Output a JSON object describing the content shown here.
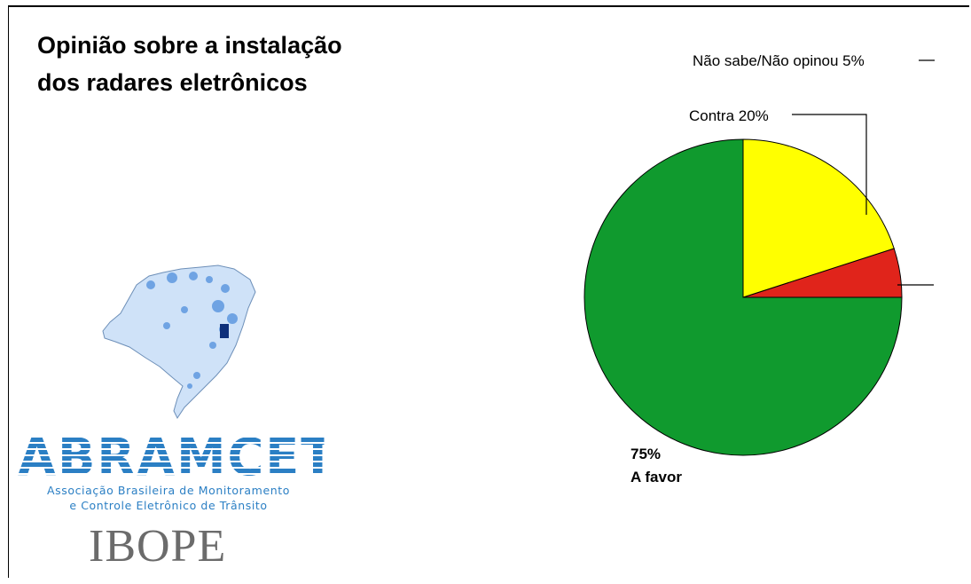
{
  "title": "Opinião sobre a instalação\ndos radares eletrônicos",
  "chart_data": {
    "type": "pie",
    "title": "Opinião sobre a instalação dos radares eletrônicos",
    "slices": [
      {
        "category": "A favor",
        "value": 75,
        "value_label": "75%",
        "color": "#109a2e"
      },
      {
        "category": "Contra",
        "value": 20,
        "value_label": "20%",
        "color": "#ffff00"
      },
      {
        "category": "Não sabe/Não opinou",
        "value": 5,
        "value_label": "5%",
        "color": "#e0241b"
      }
    ],
    "labels": {
      "dont_know": "Não sabe/Não opinou 5%",
      "against": "Contra 20%",
      "favor_pct": "75%",
      "favor_name": "A favor"
    }
  },
  "brand": {
    "name": "ABRAMCET",
    "subtitle_line1": "Associação Brasileira de Monitoramento",
    "subtitle_line2": "e Controle Eletrônico de Trânsito"
  },
  "source": "IBOPE",
  "colors": {
    "favor": "#109a2e",
    "against": "#ffff00",
    "dont_know": "#e0241b",
    "brand_blue": "#2b7fc4"
  }
}
